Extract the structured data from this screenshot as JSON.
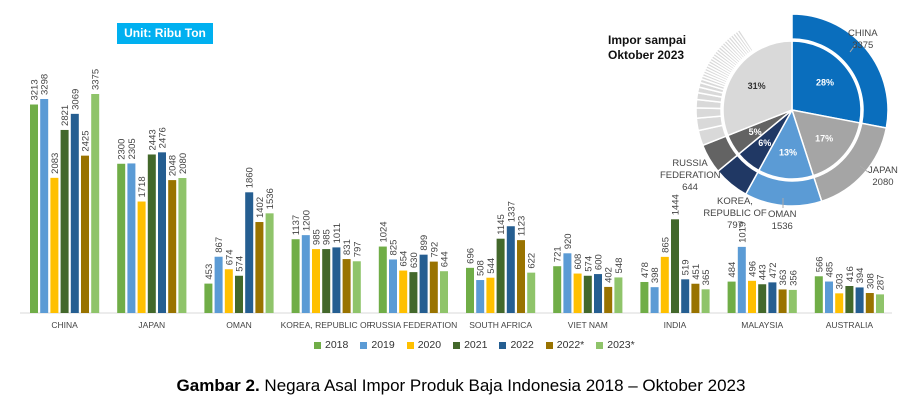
{
  "unit_label": "Unit: Ribu Ton",
  "caption": {
    "bold": "Gambar 2.",
    "text": " Negara Asal Impor Produk Baja Indonesia  2018 – Oktober 2023"
  },
  "chart_data": [
    {
      "type": "bar",
      "title": "",
      "categories": [
        "CHINA",
        "JAPAN",
        "OMAN",
        "KOREA, REPUBLIC OF",
        "RUSSIA FEDERATION",
        "SOUTH AFRICA",
        "VIET NAM",
        "INDIA",
        "MALAYSIA",
        "AUSTRALIA"
      ],
      "series": [
        {
          "name": "2018",
          "color": "#70ad47",
          "values": [
            3213,
            2300,
            453,
            1137,
            1024,
            696,
            721,
            478,
            484,
            566
          ]
        },
        {
          "name": "2019",
          "color": "#5b9bd5",
          "values": [
            3298,
            2305,
            867,
            1200,
            825,
            508,
            920,
            398,
            1019,
            485
          ]
        },
        {
          "name": "2020",
          "color": "#ffc000",
          "values": [
            2083,
            1718,
            674,
            985,
            654,
            544,
            608,
            865,
            496,
            303
          ]
        },
        {
          "name": "2021",
          "color": "#43682b",
          "values": [
            2821,
            2443,
            574,
            985,
            630,
            1145,
            574,
            1444,
            443,
            416
          ]
        },
        {
          "name": "2022",
          "color": "#255e91",
          "values": [
            3069,
            2476,
            1860,
            1011,
            899,
            1337,
            600,
            519,
            472,
            394
          ]
        },
        {
          "name": "2022*",
          "color": "#997300",
          "values": [
            2425,
            2048,
            1402,
            831,
            792,
            1123,
            402,
            451,
            363,
            308
          ]
        },
        {
          "name": "2023*",
          "color": "#8fc46a",
          "values": [
            3375,
            2080,
            1536,
            797,
            644,
            622,
            548,
            365,
            356,
            287
          ]
        }
      ],
      "ylim": [
        0,
        3500
      ],
      "legend": "bottom"
    },
    {
      "type": "pie",
      "title": "Impor sampai Oktober 2023",
      "slices": [
        {
          "label": "CHINA",
          "value": 3375,
          "pct": "28%",
          "color": "#0a6ebd"
        },
        {
          "label": "JAPAN",
          "value": 2080,
          "pct": "17%",
          "color": "#a5a5a5"
        },
        {
          "label": "OMAN",
          "value": 1536,
          "pct": "13%",
          "color": "#5b9bd5"
        },
        {
          "label": "KOREA, REPUBLIC OF",
          "value": 797,
          "pct": "6%",
          "color": "#203864"
        },
        {
          "label": "RUSSIA FEDERATION",
          "value": 644,
          "pct": "5%",
          "color": "#636363"
        },
        {
          "label": "",
          "value": null,
          "pct": "31%",
          "color": "#d9d9d9"
        }
      ]
    }
  ]
}
